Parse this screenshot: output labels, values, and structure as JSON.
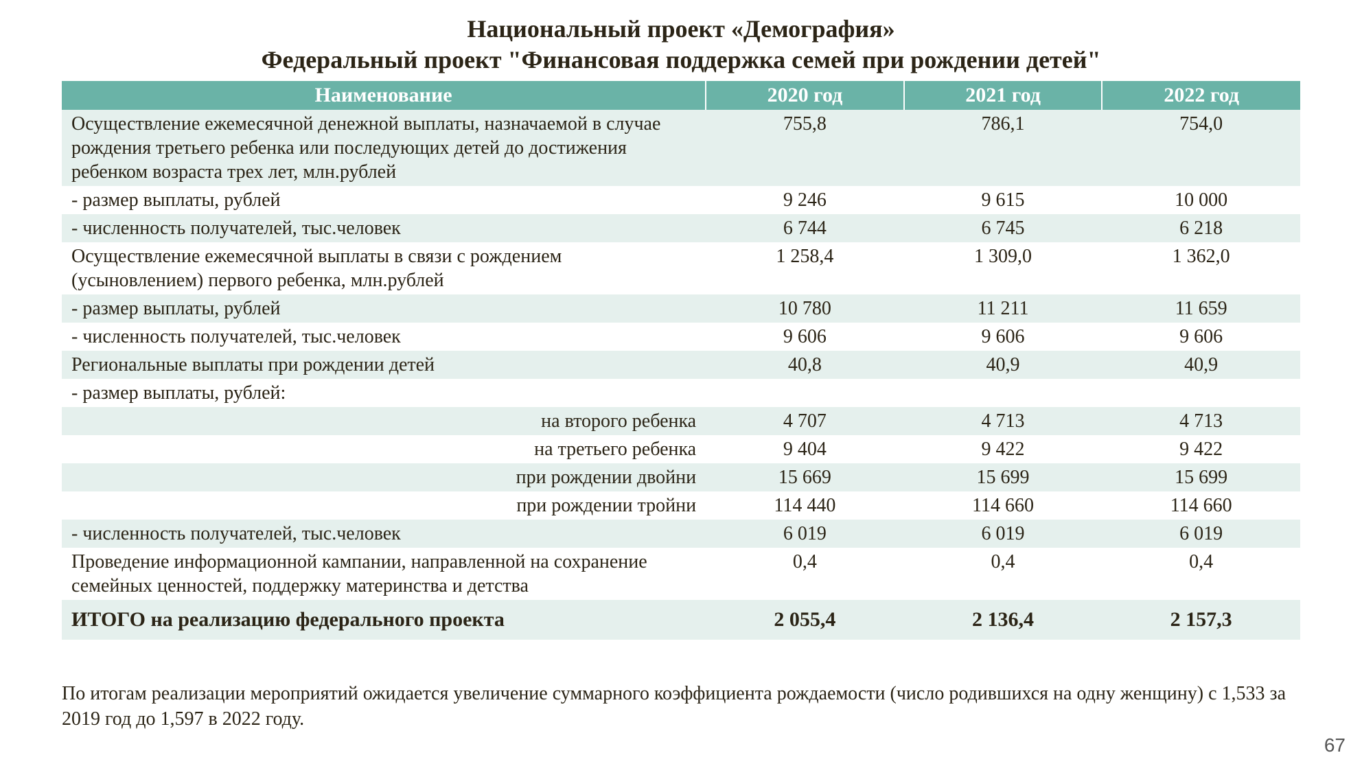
{
  "colors": {
    "header_bg": "#6ab3a7",
    "header_fg": "#ffffff",
    "row_light": "#e5f0ed",
    "row_white": "#ffffff",
    "text": "#2b2416"
  },
  "title_line1": "Национальный проект «Демография»",
  "title_line2": "Федеральный проект \"Финансовая поддержка семей при рождении детей\"",
  "columns": {
    "name": "Наименование",
    "y2020": "2020 год",
    "y2021": "2021 год",
    "y2022": "2022 год"
  },
  "column_widths_pct": [
    52,
    16,
    16,
    16
  ],
  "rows": [
    {
      "band": "light",
      "label": "Осуществление ежемесячной денежной выплаты, назначаемой в случае рождения третьего ребенка или последующих детей до достижения ребенком возраста трех лет, млн.рублей",
      "v": [
        "755,8",
        "786,1",
        "754,0"
      ]
    },
    {
      "band": "white",
      "indent": 1,
      "label": " - размер выплаты, рублей",
      "v": [
        "9 246",
        "9 615",
        "10 000"
      ]
    },
    {
      "band": "light",
      "indent": 1,
      "label": " - численность получателей, тыс.человек",
      "v": [
        "6 744",
        "6 745",
        "6 218"
      ]
    },
    {
      "band": "white",
      "label": "Осуществление ежемесячной выплаты в связи с рождением (усыновлением) первого ребенка, млн.рублей",
      "v": [
        "1 258,4",
        "1 309,0",
        "1 362,0"
      ]
    },
    {
      "band": "light",
      "indent": 1,
      "label": " - размер выплаты, рублей",
      "v": [
        "10 780",
        "11 211",
        "11 659"
      ]
    },
    {
      "band": "white",
      "indent": 1,
      "label": " - численность получателей, тыс.человек",
      "v": [
        "9 606",
        "9 606",
        "9 606"
      ]
    },
    {
      "band": "light",
      "label": "Региональные выплаты при рождении детей",
      "v": [
        "40,8",
        "40,9",
        "40,9"
      ]
    },
    {
      "band": "white",
      "indent": 1,
      "label": " - размер выплаты, рублей:",
      "v": [
        "",
        "",
        ""
      ]
    },
    {
      "band": "light",
      "align": "right",
      "label": "на второго ребенка",
      "v": [
        "4 707",
        "4 713",
        "4 713"
      ]
    },
    {
      "band": "white",
      "align": "right",
      "label": "на третьего ребенка",
      "v": [
        "9 404",
        "9 422",
        "9 422"
      ]
    },
    {
      "band": "light",
      "align": "right",
      "label": "при рождении двойни",
      "v": [
        "15 669",
        "15 699",
        "15 699"
      ]
    },
    {
      "band": "white",
      "align": "right",
      "label": "при рождении тройни",
      "v": [
        "114 440",
        "114 660",
        "114 660"
      ]
    },
    {
      "band": "light",
      "indent": 1,
      "label": " - численность получателей, тыс.человек",
      "v": [
        "6 019",
        "6 019",
        "6 019"
      ]
    },
    {
      "band": "white",
      "label": "Проведение информационной кампании, направленной на сохранение семейных ценностей, поддержку материнства и детства",
      "v": [
        "0,4",
        "0,4",
        "0,4"
      ]
    }
  ],
  "total": {
    "label": "ИТОГО на реализацию федерального проекта",
    "v": [
      "2 055,4",
      "2 136,4",
      "2 157,3"
    ]
  },
  "footnote": "По итогам реализации мероприятий ожидается увеличение суммарного коэффициента рождаемости (число родившихся на одну женщину) с 1,533 за 2019 год до 1,597 в 2022 году.",
  "page_number": "67"
}
